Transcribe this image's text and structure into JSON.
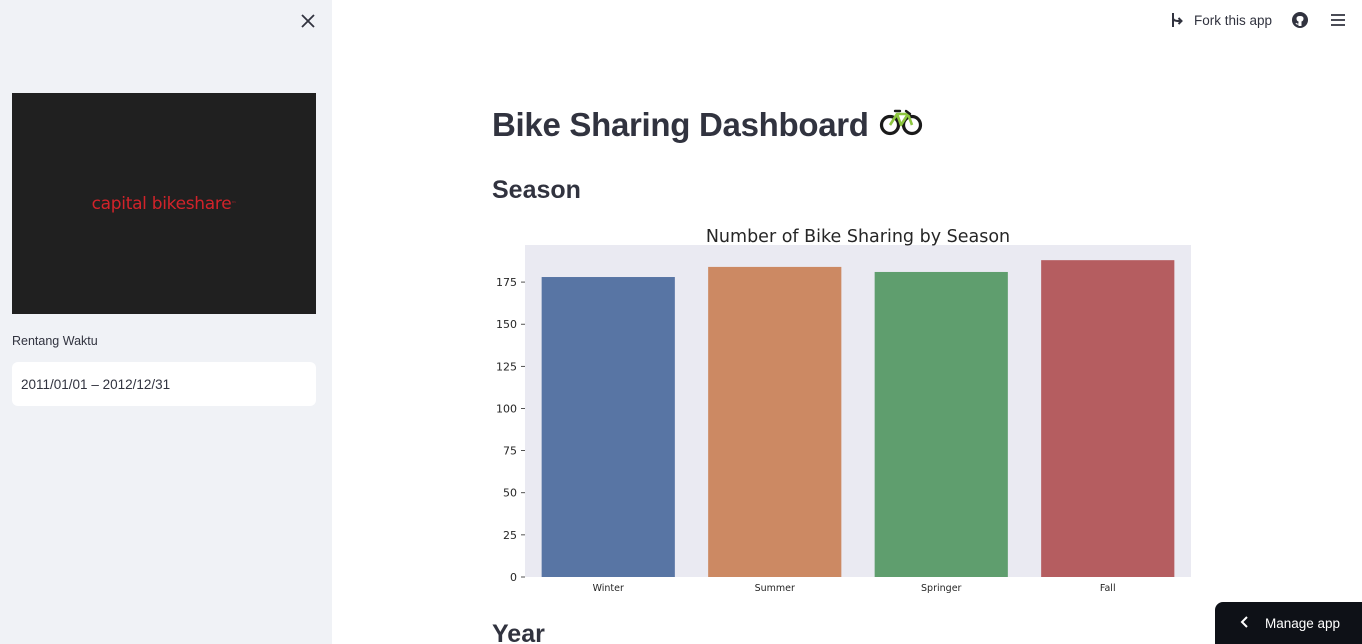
{
  "sidebar": {
    "logo_text": "capital bikeshare",
    "logo_tm": "™",
    "date_range": {
      "label": "Rentang Waktu",
      "value": "2011/01/01 – 2012/12/31"
    }
  },
  "toolbar": {
    "fork_label": "Fork this app"
  },
  "main": {
    "title": "Bike Sharing Dashboard",
    "title_emoji_icon": "bicycle-icon",
    "sections": {
      "season": "Season",
      "year": "Year"
    }
  },
  "manage_app_label": "Manage app",
  "colors": {
    "sidebar_bg": "#f0f2f6",
    "logo_bg": "#202020",
    "logo_red": "#d2232a",
    "plot_bg": "#eaeaf2",
    "winter": "#5875a4",
    "summer": "#cc8963",
    "springer": "#5f9e6e",
    "fall": "#b55d60"
  },
  "chart_data": {
    "type": "bar",
    "title": "Number of Bike Sharing by Season",
    "categories": [
      "Winter",
      "Summer",
      "Springer",
      "Fall"
    ],
    "values": [
      178,
      184,
      181,
      188
    ],
    "ylim": [
      0,
      197
    ],
    "yticks": [
      0,
      25,
      50,
      75,
      100,
      125,
      150,
      175
    ],
    "xlabel": "",
    "ylabel": "",
    "grid": false,
    "bar_colors": [
      "#5875a4",
      "#cc8963",
      "#5f9e6e",
      "#b55d60"
    ]
  }
}
